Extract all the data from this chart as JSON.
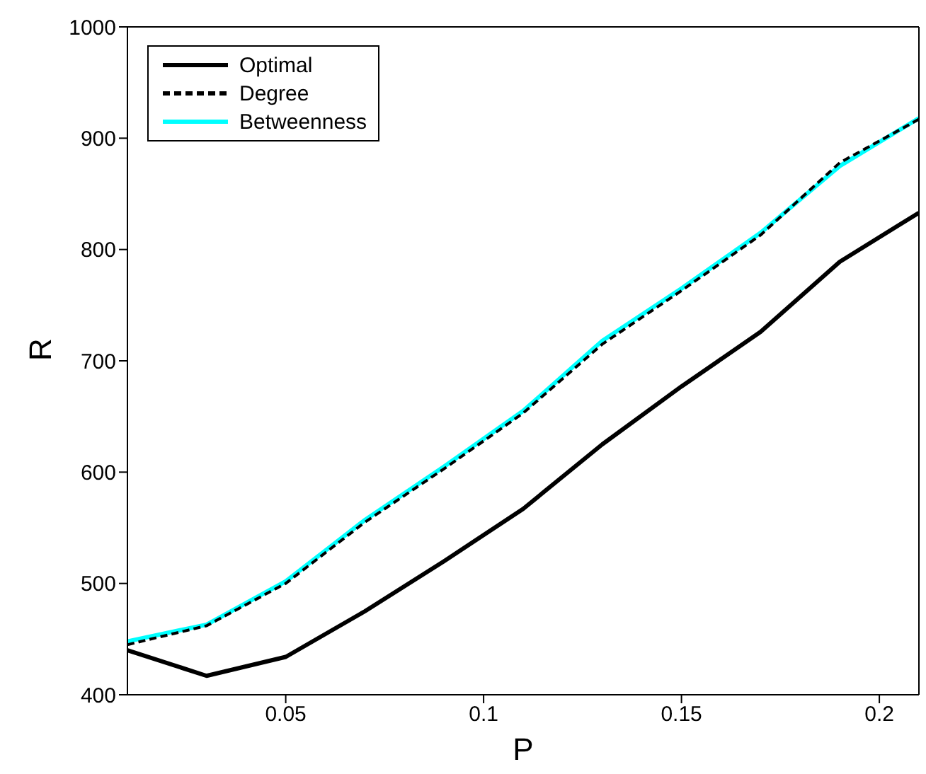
{
  "chart_data": {
    "type": "line",
    "xlabel": "P",
    "ylabel": "R",
    "x": [
      0.01,
      0.03,
      0.05,
      0.07,
      0.09,
      0.11,
      0.13,
      0.15,
      0.17,
      0.19,
      0.21
    ],
    "series": [
      {
        "name": "Optimal",
        "color": "#000000",
        "line_style": "solid",
        "values": [
          440,
          417,
          434,
          475,
          520,
          567,
          625,
          677,
          726,
          789,
          833
        ]
      },
      {
        "name": "Degree",
        "color": "#000000",
        "line_style": "dashed",
        "values": [
          445,
          462,
          500,
          555,
          603,
          653,
          715,
          763,
          813,
          878,
          917
        ]
      },
      {
        "name": "Betweenness",
        "color": "#00ffff",
        "line_style": "solid",
        "values": [
          448,
          463,
          502,
          557,
          605,
          655,
          718,
          765,
          815,
          875,
          918
        ]
      }
    ],
    "xlim": [
      0.01,
      0.21
    ],
    "xticks": [
      0.05,
      0.1,
      0.15,
      0.2
    ],
    "ylim": [
      400,
      1000
    ],
    "yticks": [
      400,
      500,
      600,
      700,
      800,
      900,
      1000
    ],
    "grid": false,
    "legend": "top left",
    "marker": "none"
  }
}
